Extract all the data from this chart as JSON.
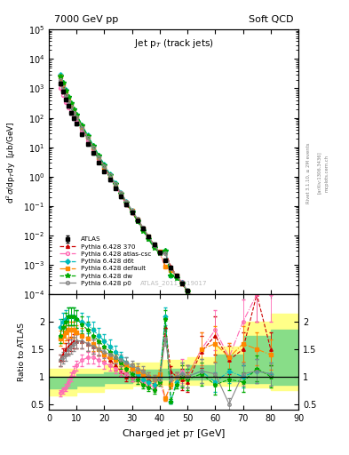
{
  "title_left": "7000 GeV pp",
  "title_right": "Soft QCD",
  "plot_title": "Jet p$_T$ (track jets)",
  "ylabel_main": "d$^2\\sigma$/dp$_{T}$dy  [$\\mu$b/GeV]",
  "ylabel_ratio": "Ratio to ATLAS",
  "xlabel": "Charged jet p$_T$ [GeV]",
  "watermark": "ATLAS_2011_I919017",
  "rivet_label": "Rivet 3.1.10, ≥ 2M events",
  "arxiv_label": "[arXiv:1306.3436]",
  "mcplots_label": "mcplots.cern.ch",
  "xlim": [
    0,
    90
  ],
  "ylim_main_lo": 0.0001,
  "ylim_main_hi": 100000.0,
  "ylim_ratio_lo": 0.4,
  "ylim_ratio_hi": 2.5,
  "ratio_yticks": [
    0.5,
    1.0,
    1.5,
    2.0
  ],
  "atlas_x": [
    4,
    5,
    6,
    7,
    8,
    9,
    10,
    12,
    14,
    16,
    18,
    20,
    22,
    24,
    26,
    28,
    30,
    32,
    34,
    36,
    38,
    40,
    42,
    44,
    46,
    48,
    50,
    55,
    60,
    65,
    70,
    75,
    80
  ],
  "atlas_y": [
    1500,
    800,
    430,
    250,
    150,
    95,
    62,
    28,
    13,
    6.3,
    3.1,
    1.55,
    0.79,
    0.41,
    0.215,
    0.113,
    0.06,
    0.032,
    0.017,
    0.0092,
    0.005,
    0.0027,
    0.00147,
    0.0008,
    0.00043,
    0.00024,
    0.00013,
    3e-05,
    7.5e-06,
    1.9e-06,
    5e-07,
    1.3e-07,
    3.5e-08
  ],
  "atlas_yerr_lo": [
    0.12,
    0.12,
    0.12,
    0.12,
    0.12,
    0.12,
    0.12,
    0.12,
    0.12,
    0.12,
    0.12,
    0.12,
    0.12,
    0.12,
    0.12,
    0.12,
    0.12,
    0.12,
    0.12,
    0.12,
    0.12,
    0.12,
    0.12,
    0.12,
    0.12,
    0.12,
    0.12,
    0.15,
    0.2,
    0.25,
    0.35,
    0.45,
    0.55
  ],
  "atlas_yerr_hi": [
    0.12,
    0.12,
    0.12,
    0.12,
    0.12,
    0.12,
    0.12,
    0.12,
    0.12,
    0.12,
    0.12,
    0.12,
    0.12,
    0.12,
    0.12,
    0.12,
    0.12,
    0.12,
    0.12,
    0.12,
    0.12,
    0.12,
    0.12,
    0.12,
    0.12,
    0.12,
    0.12,
    0.15,
    0.2,
    0.25,
    0.35,
    0.45,
    0.55
  ],
  "atlas_color": "#000000",
  "p370_color": "#cc0000",
  "p370_style": "--",
  "p370_marker": "^",
  "patlas_color": "#ff69b4",
  "patlas_style": "-.",
  "patlas_marker": "o",
  "pd6t_color": "#00bbbb",
  "pd6t_style": "-.",
  "pd6t_marker": "D",
  "pdefault_color": "#ff8800",
  "pdefault_style": "-.",
  "pdefault_marker": "s",
  "pdw_color": "#00aa00",
  "pdw_style": "--",
  "pdw_marker": "*",
  "pp0_color": "#888888",
  "pp0_style": "-",
  "pp0_marker": "o",
  "ratio_370": [
    1.3,
    1.4,
    1.5,
    1.55,
    1.6,
    1.65,
    1.65,
    1.65,
    1.6,
    1.55,
    1.5,
    1.4,
    1.3,
    1.2,
    1.1,
    1.0,
    1.0,
    1.0,
    1.05,
    0.95,
    0.85,
    1.0,
    1.9,
    1.1,
    1.0,
    0.95,
    0.9,
    1.45,
    1.75,
    1.3,
    1.5,
    2.5,
    1.5
  ],
  "ratio_csc": [
    0.7,
    0.75,
    0.8,
    0.9,
    1.0,
    1.1,
    1.2,
    1.3,
    1.35,
    1.35,
    1.3,
    1.25,
    1.2,
    1.15,
    1.1,
    1.05,
    1.0,
    0.95,
    0.9,
    0.85,
    0.8,
    0.9,
    0.6,
    0.85,
    1.0,
    1.1,
    1.0,
    1.5,
    1.85,
    1.35,
    2.0,
    2.5,
    2.5
  ],
  "ratio_d6t": [
    1.9,
    2.0,
    2.05,
    2.1,
    2.1,
    2.1,
    2.05,
    2.0,
    1.95,
    1.85,
    1.75,
    1.65,
    1.55,
    1.45,
    1.35,
    1.25,
    1.15,
    1.05,
    0.95,
    0.9,
    0.85,
    1.0,
    2.1,
    0.55,
    0.9,
    1.05,
    1.0,
    1.1,
    0.9,
    1.1,
    1.0,
    1.1,
    1.05
  ],
  "ratio_default": [
    1.7,
    1.75,
    1.8,
    1.85,
    1.85,
    1.85,
    1.8,
    1.75,
    1.7,
    1.6,
    1.5,
    1.4,
    1.35,
    1.3,
    1.25,
    1.2,
    1.15,
    1.1,
    1.05,
    1.0,
    0.95,
    1.05,
    0.6,
    0.85,
    1.0,
    1.0,
    1.0,
    1.5,
    1.6,
    1.35,
    1.6,
    1.5,
    1.4
  ],
  "ratio_dw": [
    1.75,
    1.9,
    2.0,
    2.1,
    2.1,
    2.1,
    2.05,
    1.95,
    1.85,
    1.75,
    1.65,
    1.55,
    1.45,
    1.35,
    1.25,
    1.15,
    1.05,
    0.95,
    0.85,
    0.8,
    0.75,
    0.9,
    2.05,
    0.55,
    0.85,
    1.0,
    0.95,
    1.05,
    0.85,
    0.95,
    0.9,
    1.15,
    1.0
  ],
  "ratio_p0": [
    1.3,
    1.35,
    1.4,
    1.5,
    1.55,
    1.6,
    1.65,
    1.65,
    1.6,
    1.55,
    1.5,
    1.45,
    1.4,
    1.35,
    1.3,
    1.25,
    1.2,
    1.15,
    1.1,
    1.0,
    0.95,
    0.95,
    1.7,
    0.95,
    1.0,
    1.05,
    1.0,
    1.1,
    1.05,
    0.5,
    1.05,
    1.1,
    1.05
  ],
  "band_yellow_x": [
    0,
    4,
    10,
    20,
    30,
    40,
    50,
    60,
    70,
    80,
    90
  ],
  "band_yellow_lo": [
    0.65,
    0.65,
    0.72,
    0.78,
    0.83,
    0.85,
    0.85,
    0.83,
    0.8,
    0.75,
    0.75
  ],
  "band_yellow_hi": [
    1.15,
    1.15,
    1.15,
    1.2,
    1.25,
    1.3,
    1.35,
    1.55,
    2.0,
    2.15,
    2.15
  ],
  "band_green_x": [
    0,
    4,
    10,
    20,
    30,
    40,
    50,
    60,
    70,
    80,
    90
  ],
  "band_green_lo": [
    0.78,
    0.78,
    0.83,
    0.88,
    0.92,
    0.94,
    0.94,
    0.92,
    0.88,
    0.85,
    0.85
  ],
  "band_green_hi": [
    1.0,
    1.0,
    1.05,
    1.08,
    1.12,
    1.15,
    1.2,
    1.4,
    1.75,
    1.85,
    1.85
  ]
}
